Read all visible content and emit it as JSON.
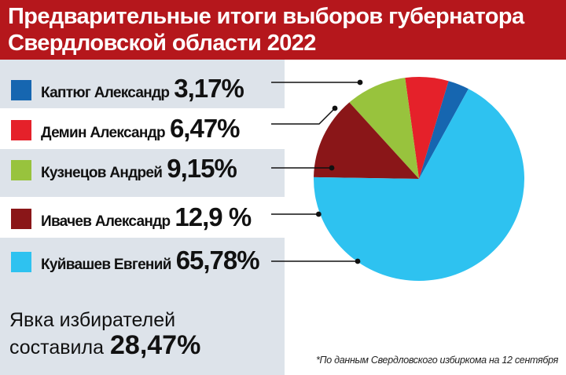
{
  "header": {
    "title_line1": "Предварительные итоги выборов губернатора",
    "title_line2": "Свердловской области 2022"
  },
  "colors": {
    "header_bg": "#b5171c",
    "panel_bg": "#dde3ea"
  },
  "chart_data": {
    "type": "pie",
    "title": "Предварительные итоги выборов губернатора Свердловской области 2022",
    "legend_placement": "left",
    "slices": [
      {
        "name": "Каптюг Александр",
        "value": 3.17,
        "label": "3,17%",
        "color": "#1666b0"
      },
      {
        "name": "Демин Александр",
        "value": 6.47,
        "label": "6,47%",
        "color": "#e5212a"
      },
      {
        "name": "Кузнецов Андрей",
        "value": 9.15,
        "label": "9,15%",
        "color": "#98c33d"
      },
      {
        "name": "Ивачев Александр",
        "value": 12.9,
        "label": "12,9 %",
        "color": "#8a1618"
      },
      {
        "name": "Куйвашев Евгений",
        "value": 65.78,
        "label": "65,78%",
        "color": "#2ec2f0"
      }
    ]
  },
  "turnout": {
    "line1": "Явка избирателей",
    "line2": "составила",
    "value": "28,47%"
  },
  "footnote": "*По данным Свердловского избиркома на 12 сентября"
}
